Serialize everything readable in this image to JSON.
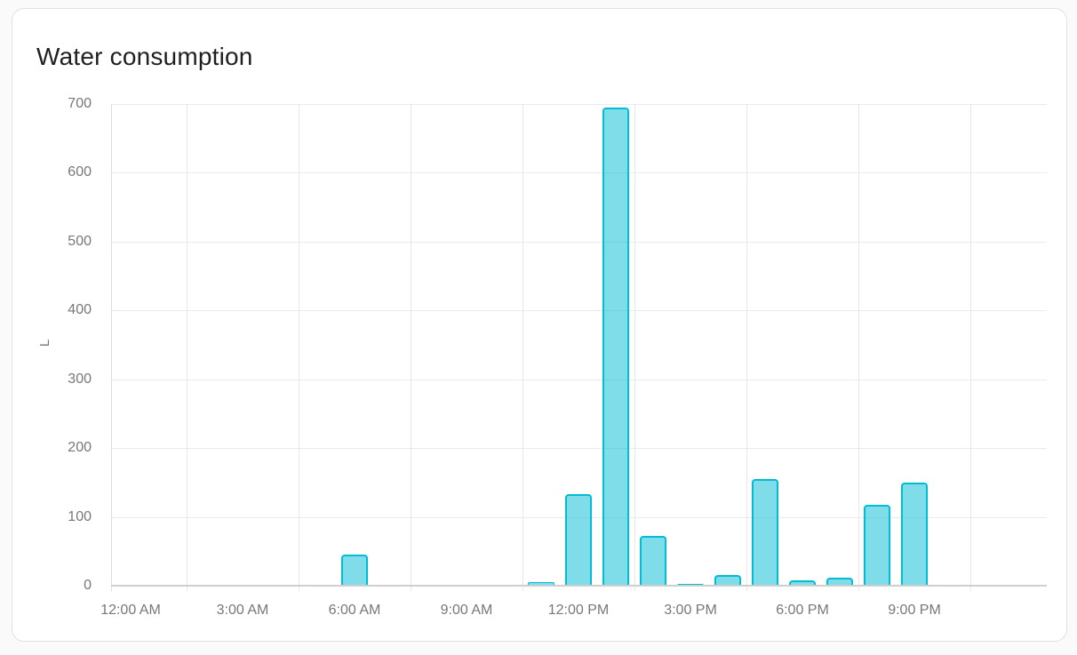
{
  "card": {
    "title": "Water consumption"
  },
  "chart_data": {
    "type": "bar",
    "title": "Water consumption",
    "xlabel": "",
    "ylabel": "L",
    "unit": "L",
    "ylim": [
      0,
      700
    ],
    "y_ticks": [
      0,
      100,
      200,
      300,
      400,
      500,
      600,
      700
    ],
    "x_tick_labels": [
      "12:00 AM",
      "3:00 AM",
      "6:00 AM",
      "9:00 AM",
      "12:00 PM",
      "3:00 PM",
      "6:00 PM",
      "9:00 PM"
    ],
    "categories": [
      "12:00 AM",
      "1:00 AM",
      "2:00 AM",
      "3:00 AM",
      "4:00 AM",
      "5:00 AM",
      "6:00 AM",
      "7:00 AM",
      "8:00 AM",
      "9:00 AM",
      "10:00 AM",
      "11:00 AM",
      "12:00 PM",
      "1:00 PM",
      "2:00 PM",
      "3:00 PM",
      "4:00 PM",
      "5:00 PM",
      "6:00 PM",
      "7:00 PM",
      "8:00 PM",
      "9:00 PM",
      "10:00 PM",
      "11:00 PM"
    ],
    "values": [
      0,
      0,
      0,
      0,
      0,
      0,
      45,
      0,
      0,
      0,
      0,
      5,
      133,
      695,
      73,
      2,
      16,
      155,
      8,
      12,
      118,
      150,
      0,
      0
    ],
    "grid": true,
    "legend": "none"
  },
  "colors": {
    "bar_border": "#00bcd4",
    "bar_fill": "rgba(0,188,212,0.5)",
    "gridline": "#eaeaea",
    "axis_line": "#cfcfcf",
    "tick_text": "#787878",
    "title_text": "#1f1f1f",
    "card_bg": "#ffffff",
    "card_border": "#e1e1e1",
    "page_bg": "#fafafa"
  }
}
